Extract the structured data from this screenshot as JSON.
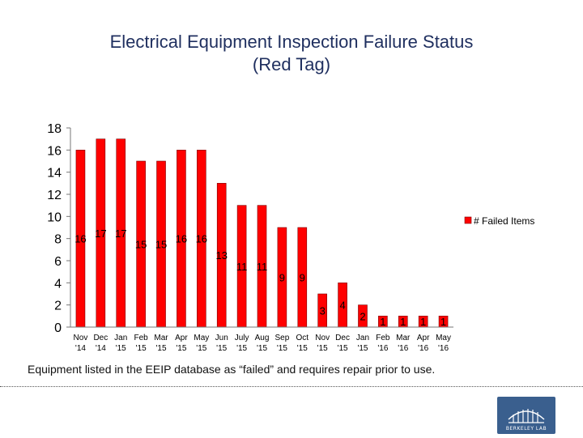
{
  "title_line1": "Electrical Equipment Inspection Failure Status",
  "title_line2": "(Red Tag)",
  "caption": "Equipment listed in the EEIP database as “failed” and requires repair prior to use.",
  "logo_text": "BERKELEY LAB",
  "colors": {
    "bar": "#ff0000",
    "bar_outline": "#7a0000",
    "title": "#1f2f5f",
    "logo": "#3a5f8e"
  },
  "chart_data": {
    "type": "bar",
    "categories": [
      [
        "Nov",
        "'14"
      ],
      [
        "Dec",
        "'14"
      ],
      [
        "Jan",
        "'15"
      ],
      [
        "Feb",
        "'15"
      ],
      [
        "Mar",
        "'15"
      ],
      [
        "Apr",
        "'15"
      ],
      [
        "May",
        "'15"
      ],
      [
        "Jun",
        "'15"
      ],
      [
        "July",
        "'15"
      ],
      [
        "Aug",
        "'15"
      ],
      [
        "Sep",
        "'15"
      ],
      [
        "Oct",
        "'15"
      ],
      [
        "Nov",
        "'15"
      ],
      [
        "Dec",
        "'15"
      ],
      [
        "Jan",
        "'15"
      ],
      [
        "Feb",
        "'16"
      ],
      [
        "Mar",
        "'16"
      ],
      [
        "Apr",
        "'16"
      ],
      [
        "May",
        "'16"
      ]
    ],
    "series": [
      {
        "name": "# Failed Items",
        "values": [
          16,
          17,
          17,
          15,
          15,
          16,
          16,
          13,
          11,
          11,
          9,
          9,
          3,
          4,
          2,
          1,
          1,
          1,
          1
        ]
      }
    ],
    "yticks": [
      0,
      2,
      4,
      6,
      8,
      10,
      12,
      14,
      16,
      18
    ],
    "ylim": [
      0,
      18
    ],
    "legend_position": "right",
    "grid": false,
    "xlabel": "",
    "ylabel": ""
  }
}
